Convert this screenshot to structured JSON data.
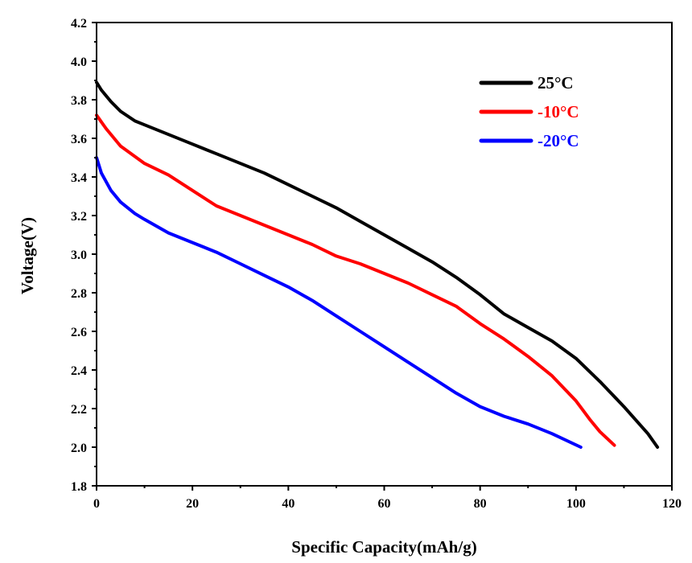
{
  "chart_data": {
    "type": "line",
    "xlabel": "Specific Capacity(mAh/g)",
    "ylabel": "Voltage(V)",
    "xlim": [
      0,
      120
    ],
    "ylim": [
      1.8,
      4.2
    ],
    "x_ticks": [
      "0",
      "20",
      "40",
      "60",
      "80",
      "100",
      "120"
    ],
    "y_ticks": [
      "1.8",
      "2.0",
      "2.2",
      "2.4",
      "2.6",
      "2.8",
      "3.0",
      "3.2",
      "3.4",
      "3.6",
      "3.8",
      "4.0",
      "4.2"
    ],
    "grid": false,
    "legend_position": "top-right",
    "series": [
      {
        "name": "25°C",
        "color": "#000000",
        "x": [
          0,
          1,
          3,
          5,
          8,
          10,
          15,
          20,
          25,
          30,
          35,
          40,
          45,
          50,
          55,
          60,
          65,
          70,
          75,
          80,
          85,
          90,
          95,
          100,
          105,
          110,
          115,
          117
        ],
        "y": [
          3.89,
          3.85,
          3.79,
          3.74,
          3.69,
          3.67,
          3.62,
          3.57,
          3.52,
          3.47,
          3.42,
          3.36,
          3.3,
          3.24,
          3.17,
          3.1,
          3.03,
          2.96,
          2.88,
          2.79,
          2.69,
          2.62,
          2.55,
          2.46,
          2.34,
          2.21,
          2.07,
          2.0
        ]
      },
      {
        "name": "-10°C",
        "color": "#ff0000",
        "x": [
          0,
          2,
          5,
          10,
          15,
          20,
          25,
          30,
          35,
          40,
          45,
          50,
          55,
          60,
          65,
          70,
          75,
          80,
          85,
          90,
          95,
          100,
          103,
          105,
          108
        ],
        "y": [
          3.72,
          3.65,
          3.56,
          3.47,
          3.41,
          3.33,
          3.25,
          3.2,
          3.15,
          3.1,
          3.05,
          2.99,
          2.95,
          2.9,
          2.85,
          2.79,
          2.73,
          2.64,
          2.56,
          2.47,
          2.37,
          2.24,
          2.14,
          2.08,
          2.01
        ]
      },
      {
        "name": "-20°C",
        "color": "#0000ff",
        "x": [
          0,
          1,
          3,
          5,
          8,
          10,
          15,
          20,
          25,
          30,
          35,
          40,
          45,
          50,
          55,
          60,
          65,
          70,
          75,
          80,
          85,
          90,
          95,
          101
        ],
        "y": [
          3.5,
          3.42,
          3.33,
          3.27,
          3.21,
          3.18,
          3.11,
          3.06,
          3.01,
          2.95,
          2.89,
          2.83,
          2.76,
          2.68,
          2.6,
          2.52,
          2.44,
          2.36,
          2.28,
          2.21,
          2.16,
          2.12,
          2.07,
          2.0
        ]
      }
    ]
  }
}
